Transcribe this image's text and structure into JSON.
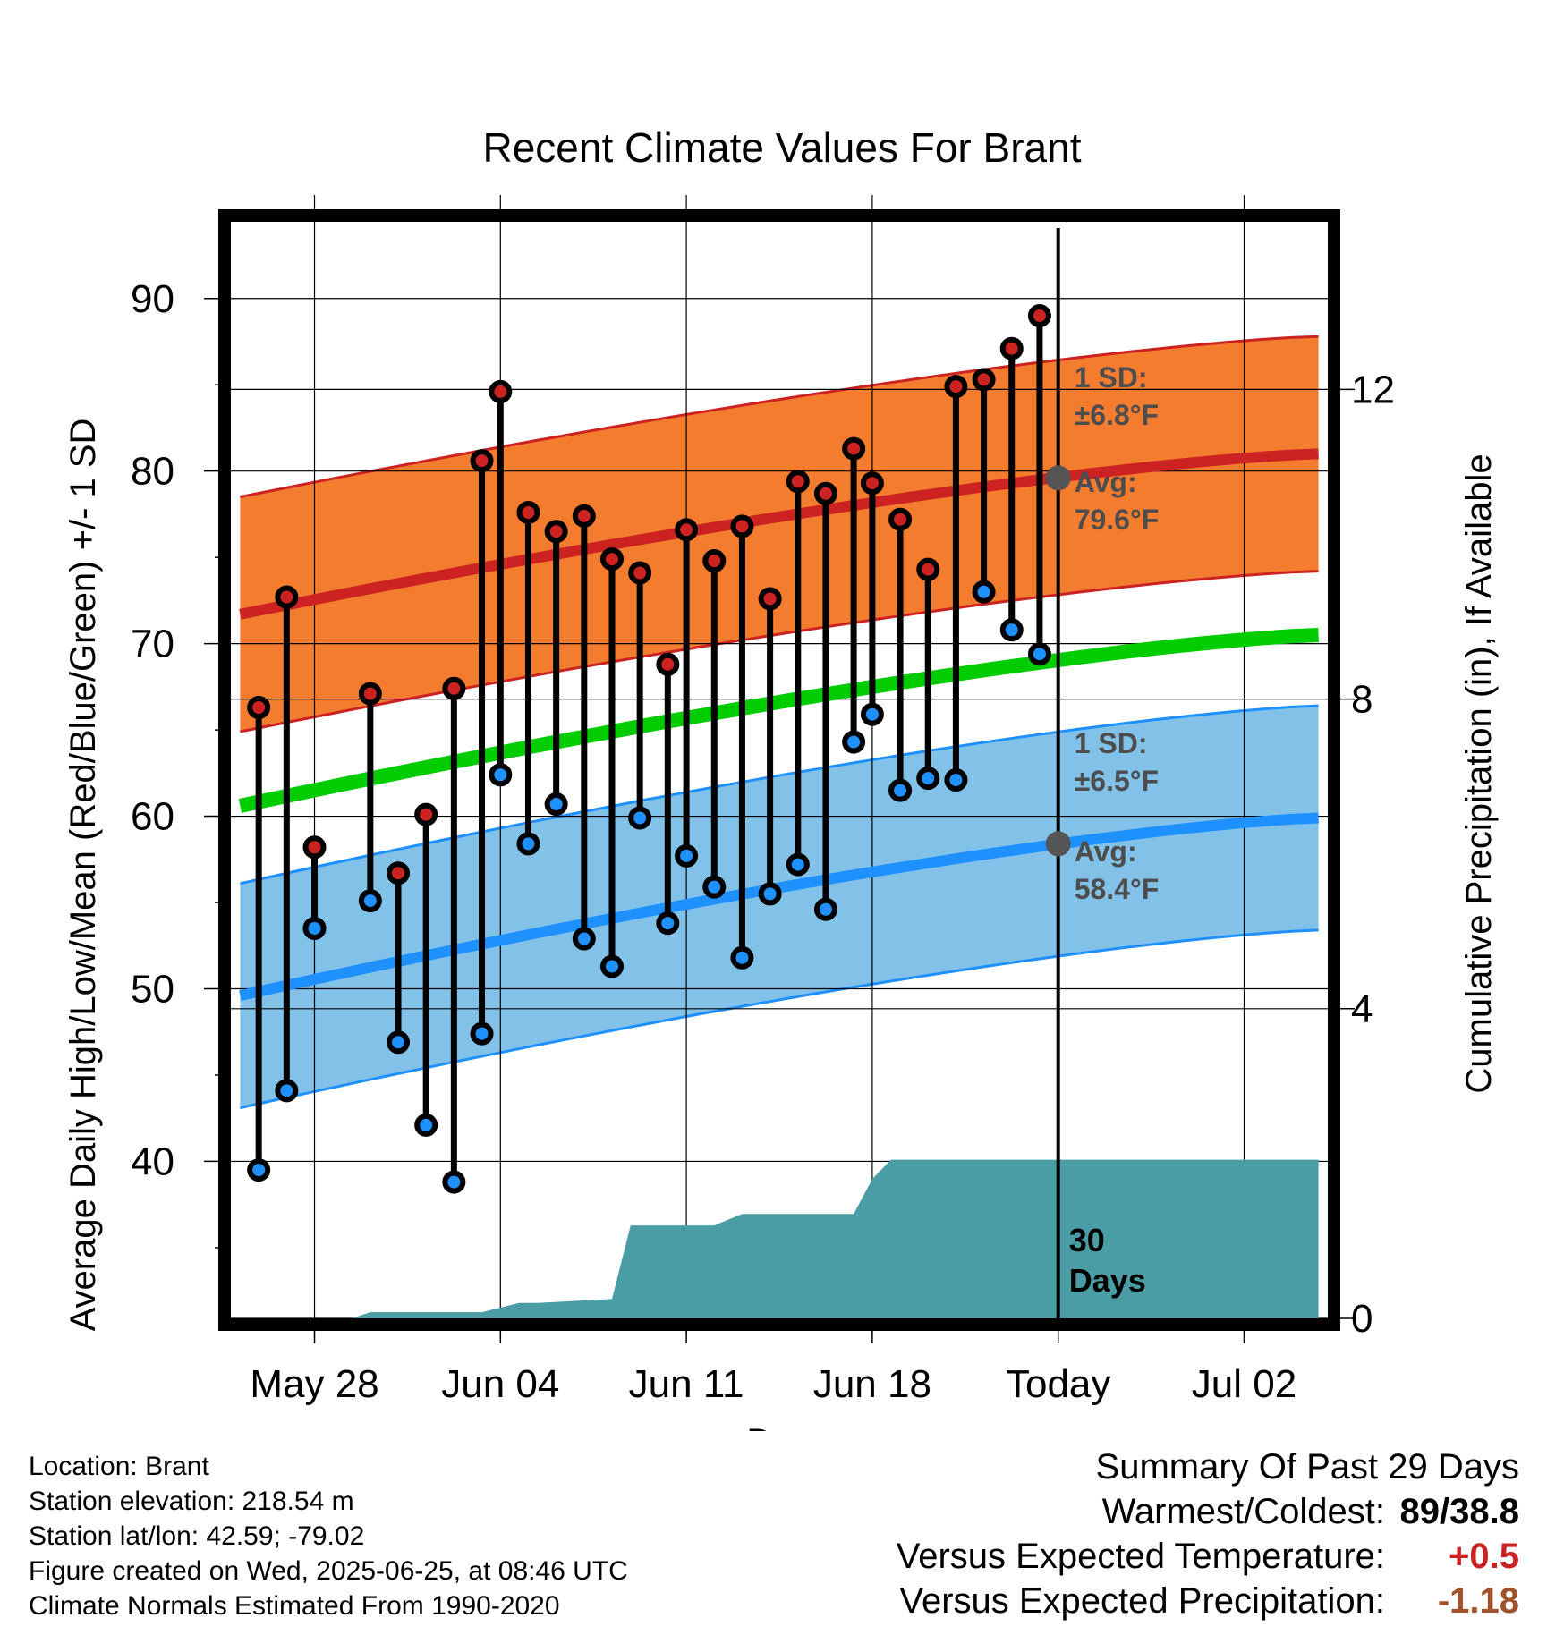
{
  "colors": {
    "high_band": "#f47c2e",
    "high_line": "#cc2222",
    "low_band": "#82c1e8",
    "low_line": "#1e90ff",
    "mean_line": "#00cc00",
    "precip": "#4a9ca5",
    "high_marker": "#cc2222",
    "low_marker": "#1e90ff",
    "positive": "#cc2222",
    "negative": "#a0522d"
  },
  "chart_data": {
    "type": "line",
    "title": "Recent Climate Values For Brant",
    "xlabel": "Day",
    "ylabel": "Average Daily High/Low/Mean (Red/Blue/Green) +/- 1 SD",
    "y2label": "Cumulative Precipitation (in), If Available",
    "ylim": [
      30.9,
      94.6
    ],
    "y2lim": [
      0,
      14.2
    ],
    "yticks": [
      40,
      50,
      60,
      70,
      80,
      90
    ],
    "y2ticks": [
      0,
      4,
      8,
      12
    ],
    "xlim": [
      -4.5,
      54.5
    ],
    "x_tick_positions": [
      0,
      10,
      20,
      30,
      40,
      50
    ],
    "x_tick_labels": [
      "May 28",
      "Jun 04",
      "Jun 11",
      "Jun 18",
      "Today",
      "Jul 02"
    ],
    "grid": true,
    "today_x": 40,
    "series": [
      {
        "name": "Daily High",
        "x": [
          -3,
          -1.5,
          0,
          3,
          4.5,
          6,
          7.5,
          9,
          10,
          11.5,
          13,
          14.5,
          16,
          17.5,
          19,
          20,
          21.5,
          23,
          24.5,
          26,
          27.5,
          29,
          30,
          31.5,
          33,
          34.5,
          36,
          37.5,
          39
        ],
        "values": [
          66.3,
          72.7,
          58.2,
          67.1,
          56.7,
          60.1,
          67.4,
          80.6,
          84.6,
          77.6,
          76.5,
          77.4,
          74.9,
          74.1,
          68.8,
          76.6,
          74.8,
          76.8,
          72.6,
          79.4,
          78.7,
          81.3,
          79.3,
          77.2,
          74.3,
          84.9,
          85.3,
          87.1,
          89.0
        ]
      },
      {
        "name": "Daily Low",
        "x": [
          -3,
          -1.5,
          0,
          3,
          4.5,
          6,
          7.5,
          9,
          10,
          11.5,
          13,
          14.5,
          16,
          17.5,
          19,
          20,
          21.5,
          23,
          24.5,
          26,
          27.5,
          29,
          30,
          31.5,
          33,
          34.5,
          36,
          37.5,
          39
        ],
        "values": [
          39.5,
          44.1,
          53.5,
          55.1,
          46.9,
          42.1,
          38.8,
          47.4,
          62.4,
          58.4,
          60.7,
          52.9,
          51.3,
          59.9,
          53.8,
          57.7,
          55.9,
          51.8,
          55.5,
          57.2,
          54.6,
          64.3,
          65.9,
          61.5,
          62.2,
          62.1,
          73.0,
          70.8,
          69.4
        ]
      },
      {
        "name": "Average High",
        "x0": -4,
        "x1": 54,
        "start": 71.7,
        "end": 81.0,
        "sd": 6.8
      },
      {
        "name": "Average Low",
        "x0": -4,
        "x1": 54,
        "start": 49.6,
        "end": 59.9,
        "sd": 6.5
      },
      {
        "name": "Average Mean",
        "x0": -4,
        "x1": 54,
        "start": 60.6,
        "end": 70.5
      },
      {
        "name": "Cumulative Precipitation",
        "x": [
          -4,
          2,
          3,
          9,
          11,
          12,
          16,
          17,
          20,
          21.5,
          22,
          23,
          24,
          26,
          29,
          30,
          31,
          39,
          40,
          54
        ],
        "values": [
          0,
          0,
          0.08,
          0.08,
          0.2,
          0.2,
          0.25,
          1.2,
          1.2,
          1.2,
          1.25,
          1.35,
          1.35,
          1.35,
          1.35,
          1.8,
          2.05,
          2.05,
          2.05,
          2.05
        ]
      }
    ],
    "annotations": {
      "high_sd": [
        "1 SD:",
        "±6.8°F"
      ],
      "high_avg": [
        "Avg:",
        "79.6°F"
      ],
      "low_sd": [
        "1 SD:",
        "±6.5°F"
      ],
      "low_avg": [
        "Avg:",
        "58.4°F"
      ],
      "days": [
        "30",
        "Days"
      ]
    }
  },
  "footer": {
    "location": "Location: Brant",
    "elevation": "Station elevation: 218.54 m",
    "latlon": "Station lat/lon: 42.59; -79.02",
    "created": "Figure created on Wed, 2025-06-25, at 08:46 UTC",
    "normals": "Climate Normals Estimated From 1990-2020"
  },
  "summary": {
    "title": "Summary Of Past 29 Days",
    "warmest_label": "Warmest/Coldest:",
    "warmest_value": "89/38.8",
    "temp_label": "Versus Expected Temperature:",
    "temp_value": "+0.5",
    "precip_label": "Versus Expected Precipitation:",
    "precip_value": "-1.18"
  }
}
